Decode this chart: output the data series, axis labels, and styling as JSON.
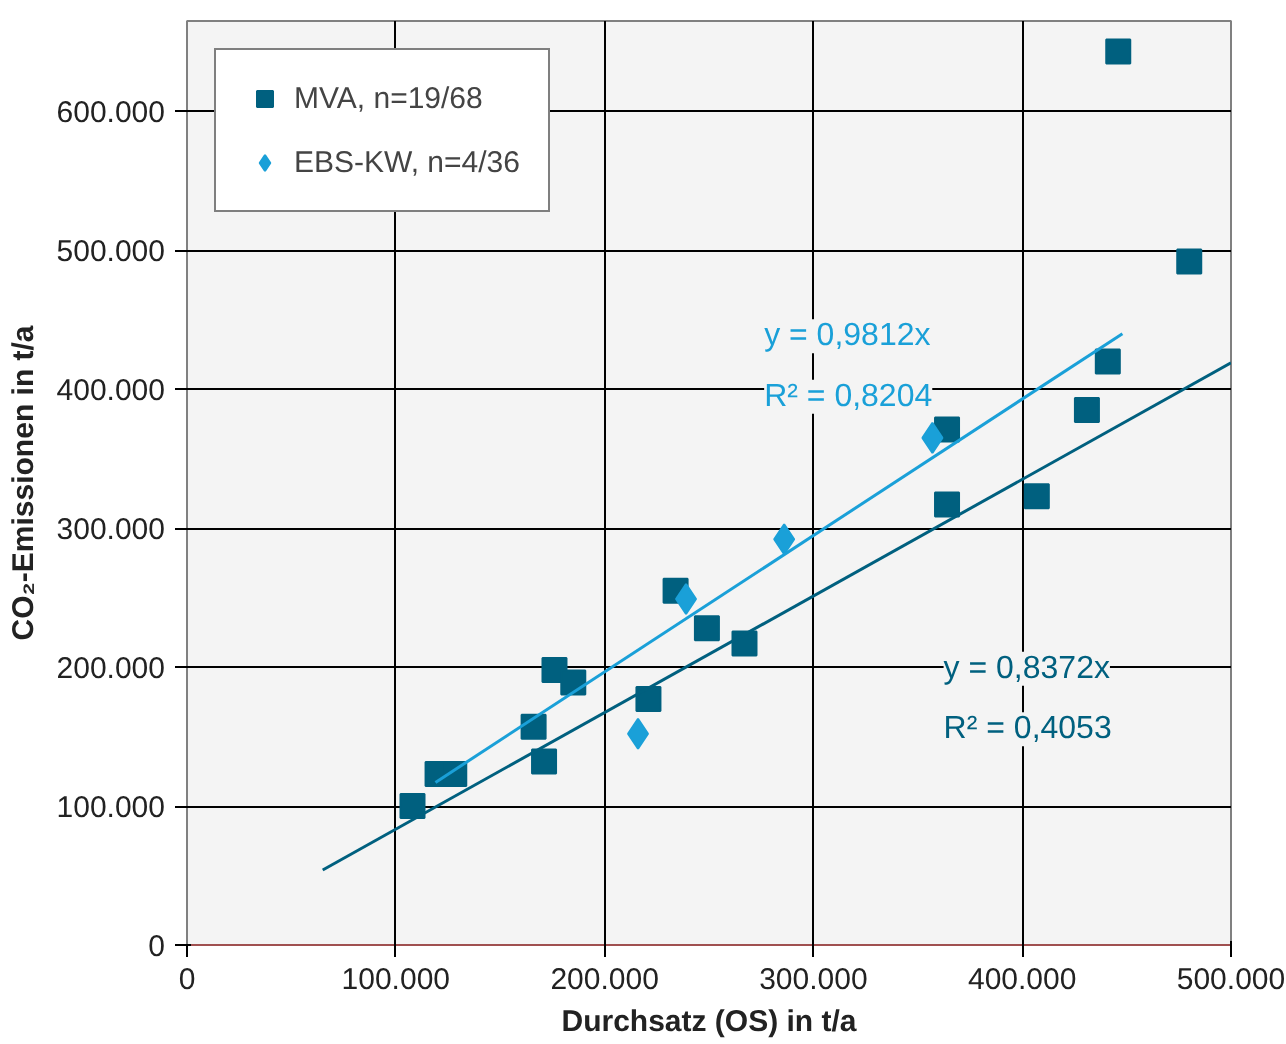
{
  "chart_data": {
    "type": "scatter",
    "xlabel": "Durchsatz (OS) in t/a",
    "ylabel": "CO₂-Emissionen in t/a",
    "xlim": [
      0,
      500000
    ],
    "ylim": [
      0,
      665000
    ],
    "xticks": [
      {
        "value": 0,
        "label": "0"
      },
      {
        "value": 100000,
        "label": "100.000"
      },
      {
        "value": 200000,
        "label": "200.000"
      },
      {
        "value": 300000,
        "label": "300.000"
      },
      {
        "value": 400000,
        "label": "400.000"
      },
      {
        "value": 500000,
        "label": "500.000"
      }
    ],
    "yticks": [
      {
        "value": 0,
        "label": "0"
      },
      {
        "value": 100000,
        "label": "100.000"
      },
      {
        "value": 200000,
        "label": "200.000"
      },
      {
        "value": 300000,
        "label": "300.000"
      },
      {
        "value": 400000,
        "label": "400.000"
      },
      {
        "value": 500000,
        "label": "500.000"
      },
      {
        "value": 600000,
        "label": "600.000"
      }
    ],
    "grid": true,
    "legend": "top left",
    "series": [
      {
        "name": "MVA, n=19/68",
        "color": "#00607f",
        "marker": "square",
        "x": [
          108000,
          120000,
          128000,
          166000,
          171000,
          176000,
          185000,
          221000,
          234000,
          249000,
          267000,
          364000,
          364000,
          407000,
          431000,
          441000,
          446000,
          480000
        ],
        "values": [
          100000,
          123000,
          123000,
          157000,
          132000,
          198000,
          189000,
          177000,
          255000,
          228000,
          217000,
          371000,
          317000,
          323000,
          385000,
          420000,
          643000,
          492000
        ]
      },
      {
        "name": "EBS-KW, n=4/36",
        "color": "#1aa0d8",
        "marker": "diamond",
        "x": [
          216000,
          239000,
          286000,
          357000
        ],
        "values": [
          152000,
          249000,
          292000,
          365000
        ]
      },
      {
        "type": "line",
        "color": "#00607f",
        "x": [
          65000,
          500000
        ],
        "values": [
          54000,
          419000
        ]
      },
      {
        "type": "line",
        "color": "#1aa0d8",
        "x": [
          119000,
          448000
        ],
        "values": [
          117000,
          440000
        ]
      }
    ],
    "annotations": [
      "y = 0,9812x",
      "R² = 0,8204",
      "y = 0,8372x",
      "R² = 0,4053"
    ]
  }
}
